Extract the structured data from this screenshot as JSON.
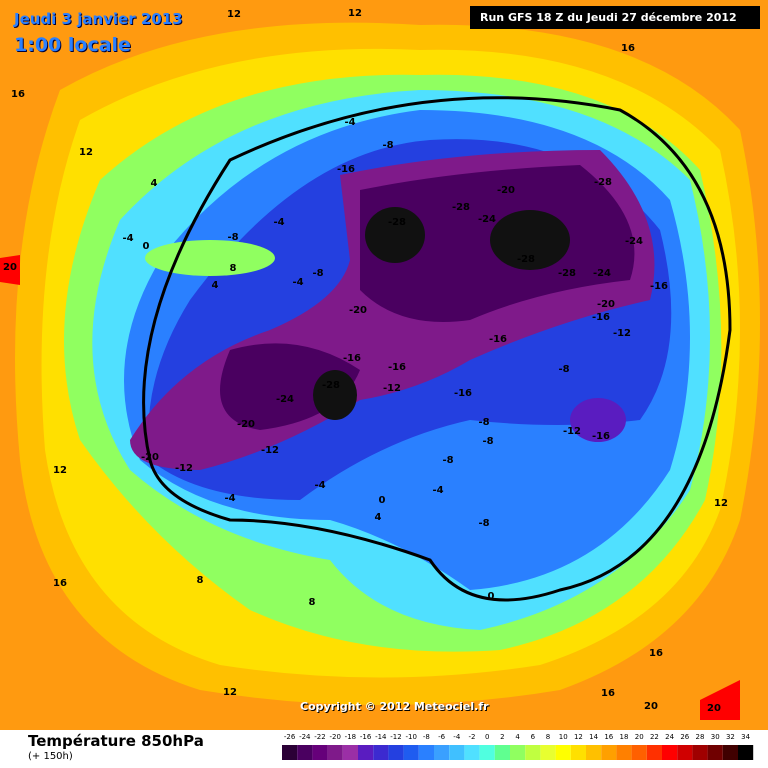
{
  "header": {
    "date": "Jeudi 3 janvier 2013",
    "time": "1:00 locale",
    "run": "Run GFS 18 Z du Jeudi 27 décembre 2012"
  },
  "copyright": "Copyright © 2012 Meteociel.fr",
  "footer": {
    "title": "Température 850hPa",
    "lead": "(+ 150h)"
  },
  "colorbar": {
    "ticks": [
      -26,
      -24,
      -22,
      -20,
      -18,
      -16,
      -14,
      -12,
      -10,
      -8,
      -6,
      -4,
      -2,
      0,
      2,
      4,
      6,
      8,
      10,
      12,
      14,
      16,
      18,
      20,
      22,
      24,
      26,
      28,
      30,
      32,
      34
    ],
    "colors": [
      "#2b0036",
      "#4a0060",
      "#66007a",
      "#7f1a8a",
      "#9b2fa6",
      "#5a1cc0",
      "#3c2ad0",
      "#2440e0",
      "#1f5cf0",
      "#2a80ff",
      "#3aa0ff",
      "#40c0ff",
      "#50e0ff",
      "#50ffe0",
      "#60ff90",
      "#90ff60",
      "#c0ff40",
      "#e8ff30",
      "#ffff00",
      "#ffe000",
      "#ffc000",
      "#ffa000",
      "#ff8000",
      "#ff6000",
      "#ff3000",
      "#ff0000",
      "#d00000",
      "#a00000",
      "#700000",
      "#400000",
      "#000000"
    ]
  },
  "contour_labels": [
    -28,
    -28,
    -24,
    -20,
    -28,
    -24,
    -28,
    -28,
    -24,
    -20,
    -16,
    -16,
    -12,
    -16,
    -8,
    -4,
    -20,
    -16,
    -16,
    -16,
    -12,
    -16,
    -28,
    -24,
    -20,
    -20,
    -12,
    -12,
    -12,
    -16,
    -8,
    -8,
    -8,
    -8,
    -8,
    -4,
    -4,
    -4,
    0,
    0,
    4,
    8,
    8,
    12,
    12,
    16,
    16,
    16,
    20,
    20,
    12,
    12,
    12,
    16,
    12,
    16,
    4,
    -4,
    -8,
    8,
    4,
    -4,
    0,
    -8,
    -4,
    20
  ]
}
